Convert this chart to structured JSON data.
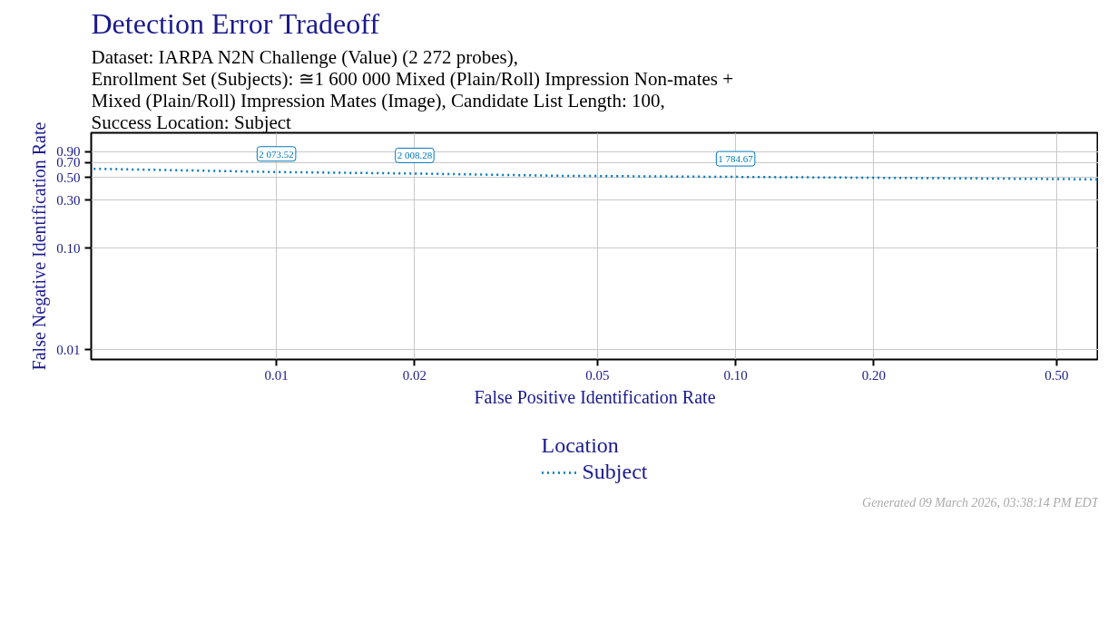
{
  "chart_data": {
    "type": "line",
    "title": "Detection Error Tradeoff",
    "subtitle": "Dataset: IARPA N2N Challenge (Value) (2 272 probes),\nEnrollment Set (Subjects): ≅1 600 000 Mixed (Plain/Roll) Impression Non-mates +\nMixed (Plain/Roll) Impression Mates (Image), Candidate List Length: 100,\nSuccess Location: Subject",
    "xlabel": "False Positive Identification Rate",
    "ylabel": "False Negative Identification Rate",
    "legend_title": "Location",
    "legend": "bottom",
    "log": "xy",
    "grid": true,
    "line_style": "dotted",
    "marker": "none",
    "x": [
      0.004,
      0.01,
      0.02,
      0.0417,
      0.1,
      0.2,
      0.5,
      0.617
    ],
    "series": [
      {
        "name": "Subject",
        "color": "#0077bb",
        "values": [
          0.61,
          0.566,
          0.547,
          0.52,
          0.507,
          0.497,
          0.483,
          0.478
        ]
      }
    ],
    "xlim": [
      0.00395,
      0.617
    ],
    "ylim": [
      0.008,
      1.38
    ],
    "xticks": [
      0.01,
      0.02,
      0.05,
      {
        "value": 0.1,
        "label": "0.10"
      },
      {
        "value": 0.2,
        "label": "0.20"
      },
      {
        "value": 0.5,
        "label": "0.50"
      }
    ],
    "yticks": [
      0.01,
      {
        "value": 0.1,
        "label": "0.10"
      },
      {
        "value": 0.3,
        "label": "0.30"
      },
      {
        "value": 0.5,
        "label": "0.50"
      },
      {
        "value": 0.7,
        "label": "0.70"
      },
      {
        "value": 0.9,
        "label": "0.90"
      }
    ],
    "annotations": [
      {
        "text": "2 073.52",
        "x": 0.01,
        "y": 0.566
      },
      {
        "text": "2 008.28",
        "x": 0.02,
        "y": 0.547
      },
      {
        "text": "1 784.67",
        "x": 0.1,
        "y": 0.507
      },
      "Generated 09 March 2026, 03:38:14 PM EDT"
    ]
  }
}
